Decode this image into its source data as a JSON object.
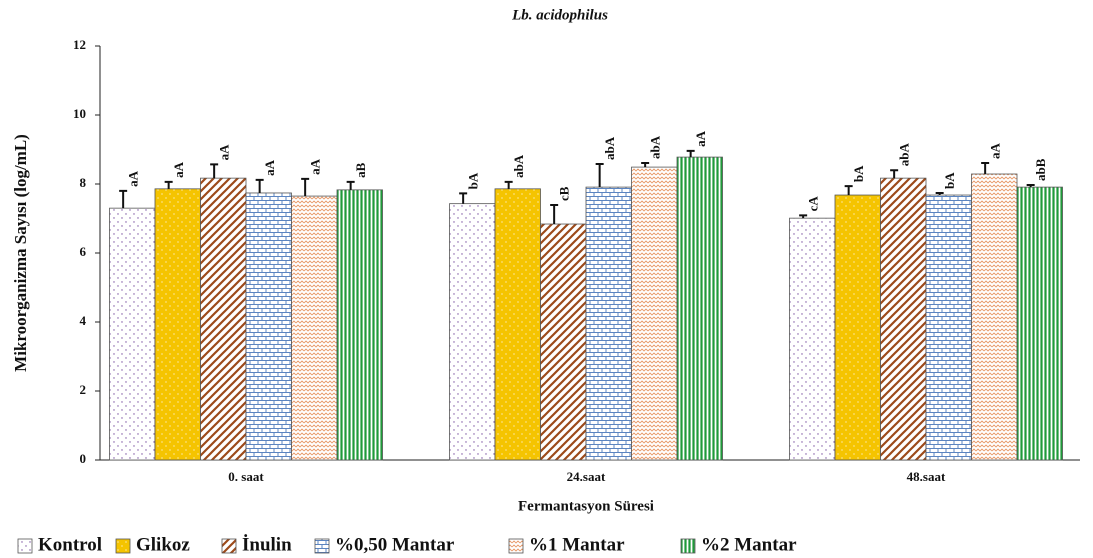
{
  "chart_data": {
    "type": "bar",
    "title": "Lb. acidophilus",
    "x_label": "Fermantasyon Süresi",
    "y_label": "Mikroorganizma Sayısı (log/mL)",
    "categories": [
      "0. saat",
      "24.saat",
      "48.saat"
    ],
    "ylim": [
      0,
      12
    ],
    "yticks": [
      0,
      2,
      4,
      6,
      8,
      10,
      12
    ],
    "legend": "bottom",
    "series": [
      {
        "name": "Kontrol",
        "color": "#7a4fa0",
        "values": [
          7.3,
          7.43,
          7.01
        ],
        "errors": [
          0.5,
          0.3,
          0.08
        ],
        "labels": [
          "aA",
          "bA",
          "cA"
        ]
      },
      {
        "name": "Glikoz",
        "color": "#f5c400",
        "values": [
          7.86,
          7.86,
          7.68
        ],
        "errors": [
          0.2,
          0.2,
          0.26
        ],
        "labels": [
          "aA",
          "abA",
          "bA"
        ]
      },
      {
        "name": "İnulin",
        "color": "#9c4a1a",
        "values": [
          8.17,
          6.84,
          8.17
        ],
        "errors": [
          0.4,
          0.55,
          0.23
        ],
        "labels": [
          "aA",
          "cB",
          "abA"
        ]
      },
      {
        "name": "%0,50 Mantar",
        "color": "#5b84c0",
        "values": [
          7.74,
          7.91,
          7.68
        ],
        "errors": [
          0.38,
          0.67,
          0.06
        ],
        "labels": [
          "aA",
          "abA",
          "bA"
        ]
      },
      {
        "name": "%1 Mantar",
        "color": "#e89a6a",
        "values": [
          7.65,
          8.49,
          8.29
        ],
        "errors": [
          0.5,
          0.12,
          0.32
        ],
        "labels": [
          "aA",
          "abA",
          "aA"
        ]
      },
      {
        "name": "%2 Mantar",
        "color": "#1f9a3a",
        "values": [
          7.83,
          8.78,
          7.91
        ],
        "errors": [
          0.23,
          0.18,
          0.06
        ],
        "labels": [
          "aB",
          "aA",
          "abB"
        ]
      }
    ]
  }
}
